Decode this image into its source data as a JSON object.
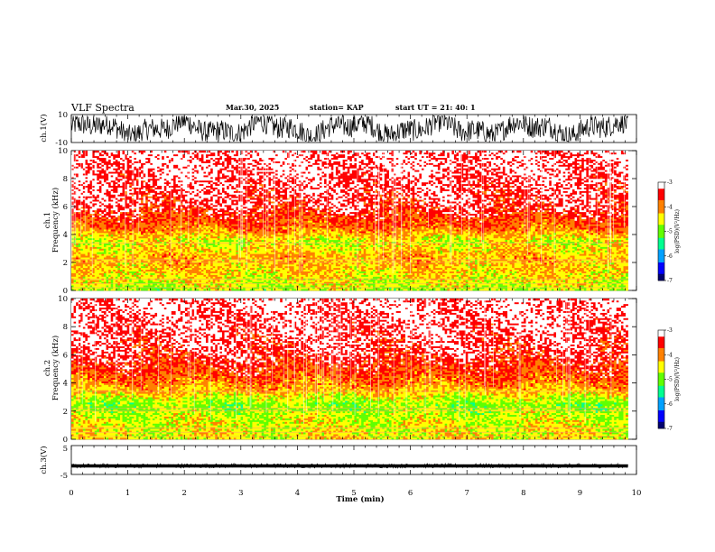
{
  "header": {
    "title": "VLF Spectra",
    "date": "Mar.30, 2025",
    "station": "station= KAP",
    "start": "start  UT  =   21: 40: 1"
  },
  "chart_data": [
    {
      "type": "line",
      "panel": "ch1-waveform",
      "ylabel": "ch.1(V)",
      "ylim": [
        -10,
        10
      ],
      "yticks": [
        "10",
        "-10"
      ],
      "xlim": [
        0,
        10
      ],
      "note": "dense noise waveform, roughly between -9 and +9 V"
    },
    {
      "type": "heatmap",
      "panel": "ch1-spectrogram",
      "ylabel": "ch.1\nFrequency (kHz)",
      "ylim": [
        0,
        10
      ],
      "yticks": [
        "0",
        "2",
        "4",
        "6",
        "8",
        "10"
      ],
      "xlim": [
        0,
        9.85
      ],
      "log_psd_profile_by_kHz": [
        [
          0.5,
          -4.6
        ],
        [
          1.5,
          -4.3
        ],
        [
          2.5,
          -4.2
        ],
        [
          3.5,
          -4.6
        ],
        [
          4.5,
          -3.9
        ],
        [
          6,
          -3.4
        ],
        [
          8,
          -3.2
        ],
        [
          10,
          -3.1
        ]
      ],
      "colorbar": {
        "label": "log(PSD)(V²/Hz)",
        "min": -7,
        "max": -3,
        "ticks": [
          "-3",
          "-4",
          "-5",
          "-6",
          "-7"
        ]
      }
    },
    {
      "type": "heatmap",
      "panel": "ch2-spectrogram",
      "ylabel": "ch.2\nFrequency (kHz)",
      "ylim": [
        0,
        10
      ],
      "yticks": [
        "0",
        "2",
        "4",
        "6",
        "8",
        "10"
      ],
      "xlim": [
        0,
        9.85
      ],
      "log_psd_profile_by_kHz": [
        [
          0.5,
          -4.5
        ],
        [
          1.5,
          -4.6
        ],
        [
          2.5,
          -4.9
        ],
        [
          3.5,
          -4.2
        ],
        [
          4.5,
          -3.8
        ],
        [
          6,
          -3.4
        ],
        [
          8,
          -3.2
        ],
        [
          10,
          -3.1
        ]
      ],
      "colorbar": {
        "label": "log(PSD)(V²/Hz)",
        "min": -7,
        "max": -3,
        "ticks": [
          "-3",
          "-4",
          "-5",
          "-6",
          "-7"
        ]
      }
    },
    {
      "type": "line",
      "panel": "ch3-waveform",
      "ylabel": "ch.3(V)",
      "ylim": [
        -5,
        5
      ],
      "yticks": [
        "5",
        "-5"
      ],
      "xlim": [
        0,
        10
      ],
      "xlabel": "Time (min)",
      "xticks": [
        "0",
        "1",
        "2",
        "3",
        "4",
        "5",
        "6",
        "7",
        "8",
        "9",
        "10"
      ],
      "note": "narrow band near -2 V"
    }
  ],
  "colors": {
    "scale": [
      "#00006e",
      "#0000ff",
      "#00a0ff",
      "#00ff90",
      "#60ff00",
      "#ffff00",
      "#ff8000",
      "#ff0000",
      "#ffffff"
    ]
  }
}
